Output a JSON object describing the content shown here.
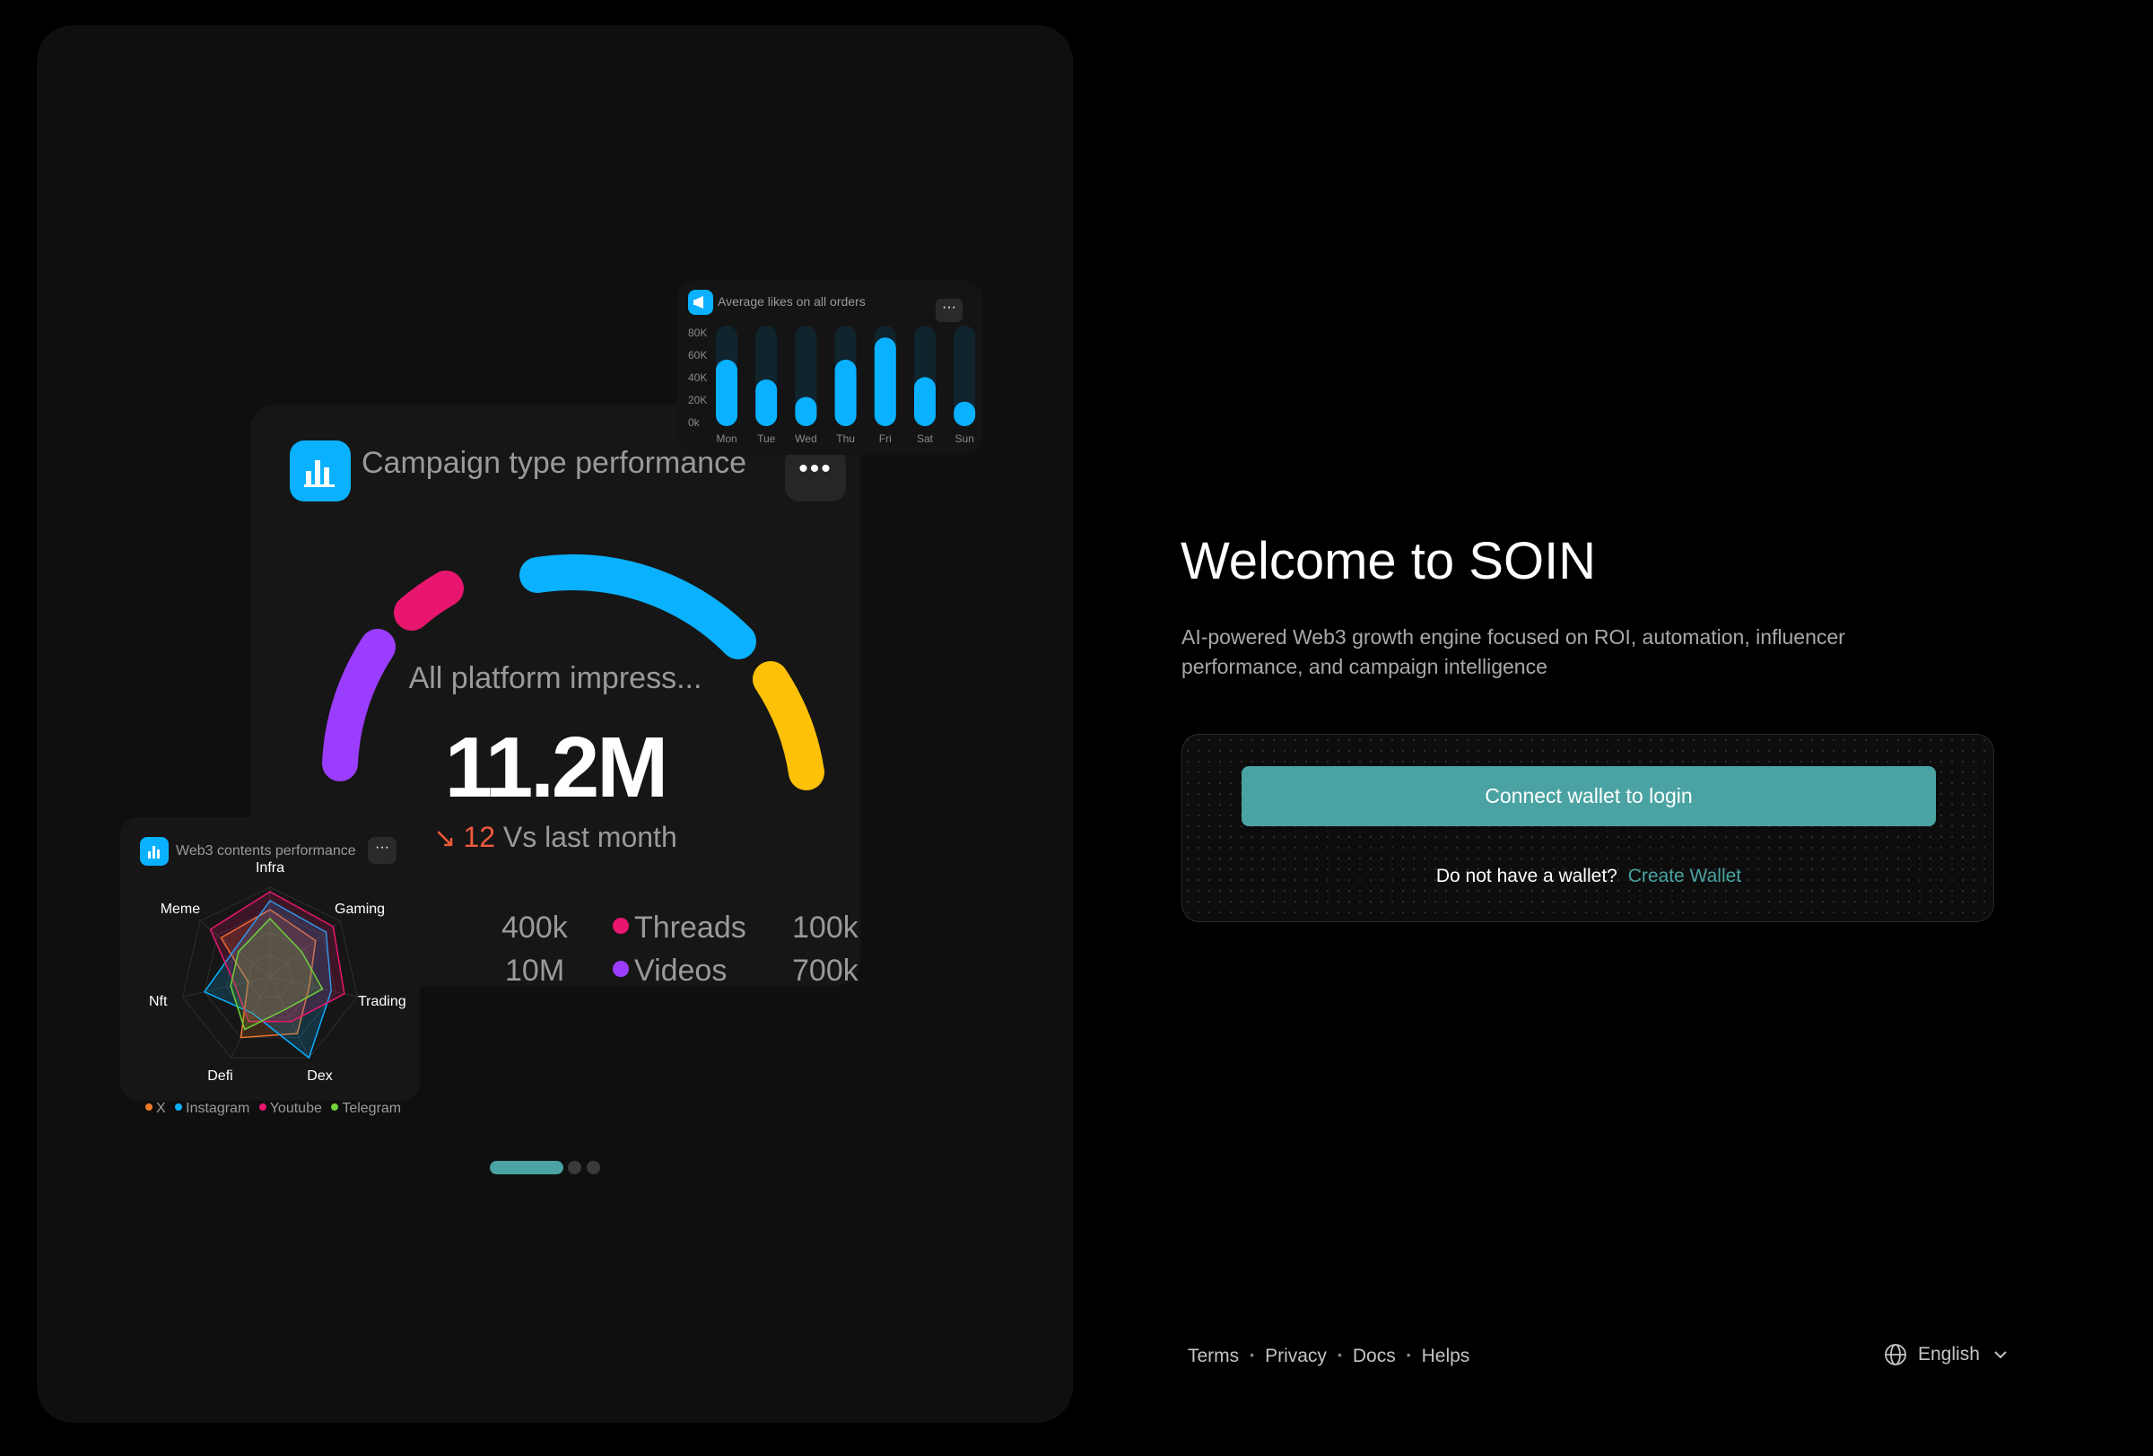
{
  "colors": {
    "accent_teal": "#4aa3a2",
    "accent_blue": "#0ab1ff",
    "pink": "#e8166e",
    "purple": "#9b3dff",
    "yellow": "#ffc107",
    "down_red": "#ef5a3c"
  },
  "campaign_card": {
    "title": "Campaign type performance",
    "more": "•••",
    "label": "All platform impress...",
    "value": "11.2M",
    "change_value": "12",
    "change_text": "Vs last month",
    "rows": [
      {
        "left_value": "400k",
        "name": "Threads",
        "right_value": "100k",
        "color": "#e8166e"
      },
      {
        "left_value": "10M",
        "name": "Videos",
        "right_value": "700k",
        "color": "#9b3dff"
      }
    ]
  },
  "bar_card": {
    "title": "Average likes on all orders",
    "more": "···",
    "icon": "megaphone-icon",
    "y_ticks": [
      "80K",
      "60K",
      "40K",
      "20K",
      "0k"
    ],
    "chart_data": {
      "type": "bar",
      "categories": [
        "Mon",
        "Tue",
        "Wed",
        "Thu",
        "Fri",
        "Sat",
        "Sun"
      ],
      "values": [
        57000,
        40000,
        25000,
        57000,
        76000,
        42000,
        21000
      ],
      "ylim": [
        0,
        80000
      ]
    }
  },
  "radar_card": {
    "title": "Web3 contents performance",
    "more": "···",
    "axes": [
      "Infra",
      "Gaming",
      "Trading",
      "Dex",
      "Defi",
      "Nft",
      "Meme"
    ],
    "legend": [
      {
        "name": "X",
        "color": "#f07a2a"
      },
      {
        "name": "Instagram",
        "color": "#0ab1ff"
      },
      {
        "name": "Youtube",
        "color": "#e8166e"
      },
      {
        "name": "Telegram",
        "color": "#6fd13a"
      }
    ],
    "chart_data": {
      "type": "radar",
      "categories": [
        "Infra",
        "Gaming",
        "Trading",
        "Dex",
        "Defi",
        "Nft",
        "Meme"
      ],
      "series": [
        {
          "name": "X",
          "values": [
            0.75,
            0.65,
            0.45,
            0.7,
            0.75,
            0.25,
            0.7
          ]
        },
        {
          "name": "Instagram",
          "values": [
            0.85,
            0.8,
            0.7,
            1.0,
            0.45,
            0.75,
            0.5
          ]
        },
        {
          "name": "Youtube",
          "values": [
            0.95,
            0.9,
            0.85,
            0.55,
            0.55,
            0.4,
            0.85
          ]
        },
        {
          "name": "Telegram",
          "values": [
            0.65,
            0.45,
            0.6,
            0.4,
            0.65,
            0.45,
            0.45
          ]
        }
      ]
    }
  },
  "login": {
    "welcome": "Welcome to SOIN",
    "subtitle": "AI-powered Web3 growth engine focused on ROI, automation, influencer performance, and campaign intelligence",
    "connect_button": "Connect wallet to login",
    "no_wallet_text": "Do not have a wallet?",
    "create_wallet_link": "Create Wallet"
  },
  "footer": {
    "links": [
      "Terms",
      "Privacy",
      "Docs",
      "Helps"
    ],
    "language": "English",
    "language_icon": "globe-icon"
  }
}
